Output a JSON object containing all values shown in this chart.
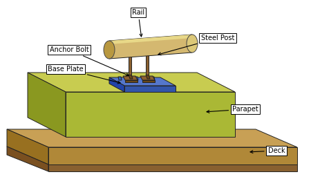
{
  "bg_color": "#ffffff",
  "parapet_top": "#c8cc50",
  "parapet_front": "#aab835",
  "parapet_left": "#8a9820",
  "deck_top": "#c8a055",
  "deck_front": "#b08838",
  "deck_left": "#987020",
  "deck_bot_front": "#886030",
  "deck_bot_left": "#7a5020",
  "baseplate_top": "#5577cc",
  "baseplate_front": "#3355aa",
  "baseplate_left": "#2244aa",
  "post_color": "#8a6030",
  "post_dark": "#6a4818",
  "rail_body": "#d4b870",
  "rail_left_cap": "#b89840",
  "rail_right_cap": "#dcc878",
  "rail_highlight": "#e8d888",
  "bolt_color": "#3366bb",
  "label_rail": "Rail",
  "label_anchor": "Anchor Bolt",
  "label_base": "Base Plate",
  "label_post": "Steel Post",
  "label_parapet": "Parapet",
  "label_deck": "Deck"
}
